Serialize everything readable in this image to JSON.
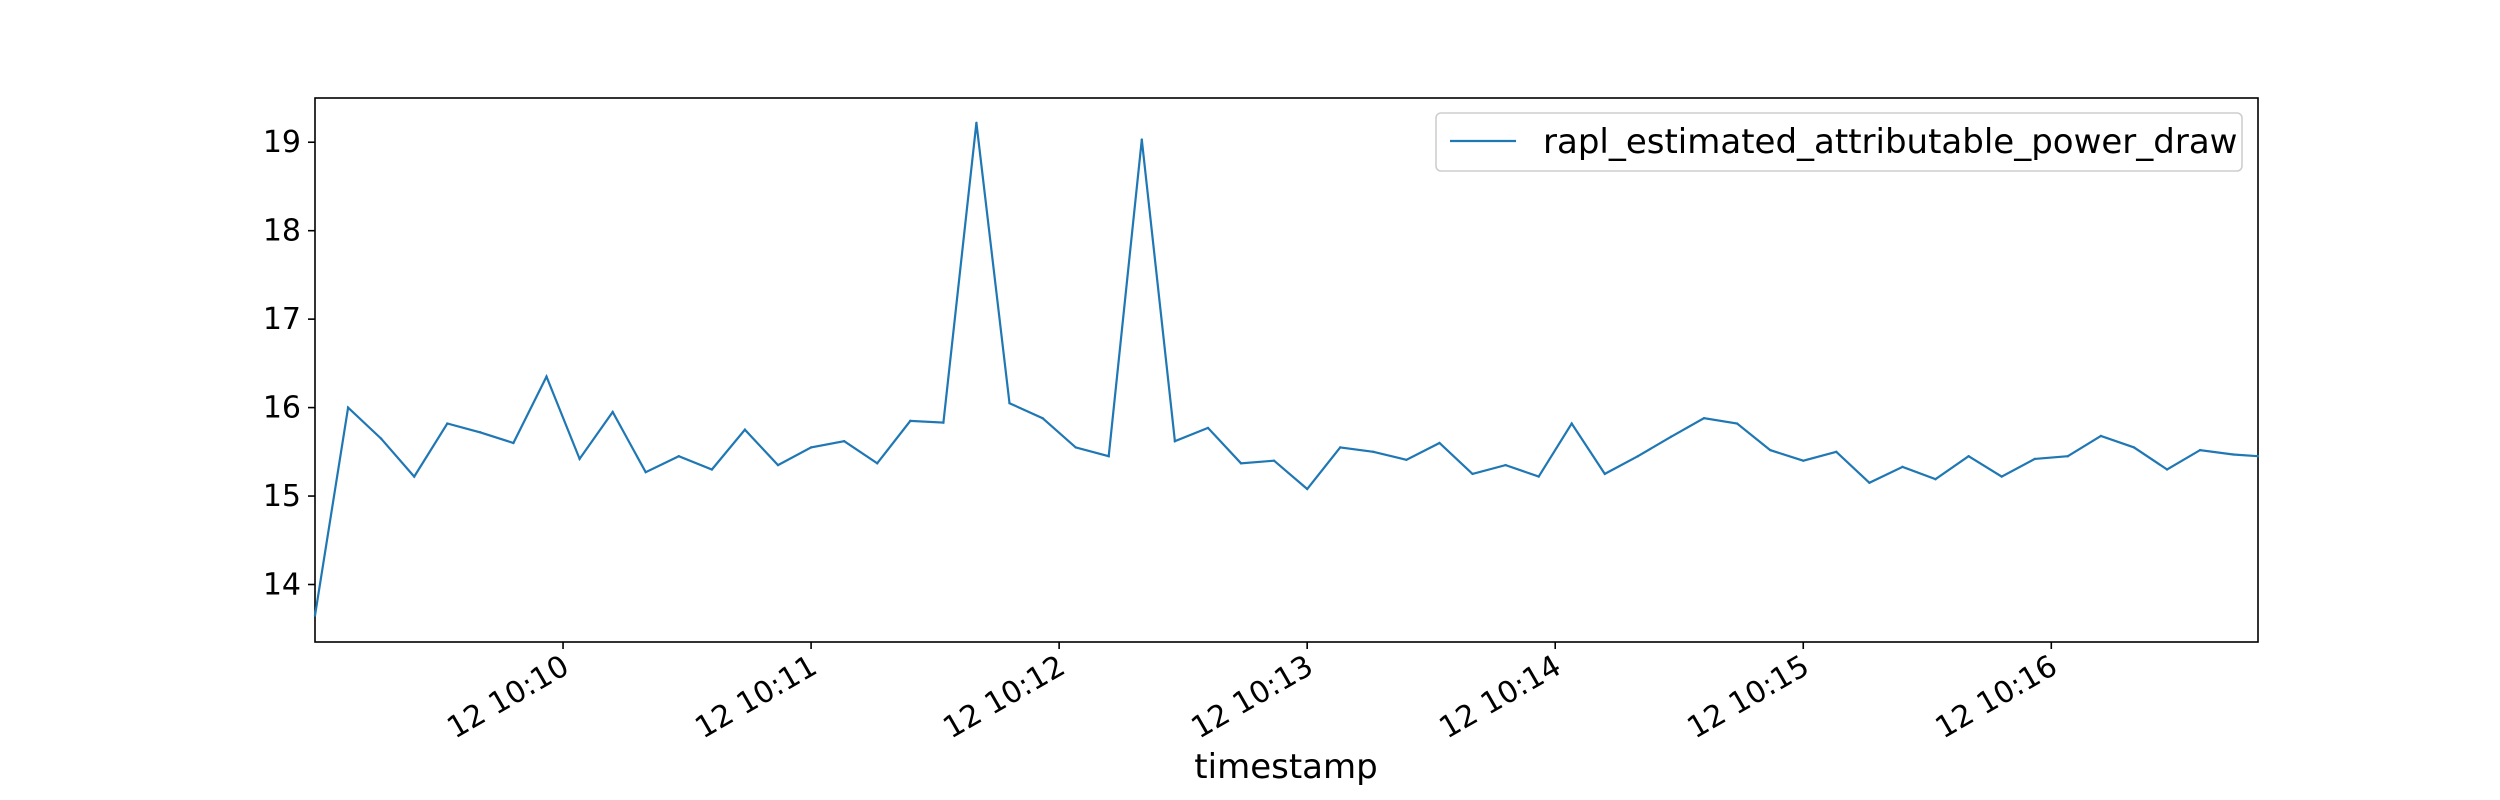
{
  "chart_data": {
    "type": "line",
    "title": "",
    "xlabel": "timestamp",
    "ylabel": "",
    "xlim": [
      0,
      470
    ],
    "ylim": [
      13.35,
      19.5
    ],
    "x_ticks": [
      {
        "value": 60,
        "label": "12 10:10"
      },
      {
        "value": 120,
        "label": "12 10:11"
      },
      {
        "value": 180,
        "label": "12 10:12"
      },
      {
        "value": 240,
        "label": "12 10:13"
      },
      {
        "value": 300,
        "label": "12 10:14"
      },
      {
        "value": 360,
        "label": "12 10:15"
      },
      {
        "value": 420,
        "label": "12 10:16"
      }
    ],
    "y_ticks": [
      {
        "value": 14,
        "label": "14"
      },
      {
        "value": 15,
        "label": "15"
      },
      {
        "value": 16,
        "label": "16"
      },
      {
        "value": 17,
        "label": "17"
      },
      {
        "value": 18,
        "label": "18"
      },
      {
        "value": 19,
        "label": "19"
      }
    ],
    "grid": false,
    "legend": {
      "position": "top-right",
      "entries": [
        "rapl_estimated_attributable_power_draw"
      ]
    },
    "series": [
      {
        "name": "rapl_estimated_attributable_power_draw",
        "color": "#1f77b4",
        "x": [
          0,
          8,
          16,
          24,
          32,
          40,
          48,
          56,
          64,
          72,
          80,
          88,
          96,
          104,
          112,
          120,
          128,
          136,
          144,
          152,
          160,
          168,
          176,
          184,
          192,
          200,
          208,
          216,
          224,
          232,
          240,
          248,
          256,
          264,
          272,
          280,
          288,
          296,
          304,
          312,
          320,
          328,
          336,
          344,
          352,
          360,
          368,
          376,
          384,
          392,
          400,
          408,
          416,
          424,
          432,
          440,
          448,
          456,
          464,
          470
        ],
        "y": [
          13.65,
          16.0,
          15.65,
          15.22,
          15.82,
          15.72,
          15.6,
          16.35,
          15.42,
          15.95,
          15.27,
          15.45,
          15.3,
          15.75,
          15.35,
          15.55,
          15.62,
          15.37,
          15.85,
          15.83,
          19.22,
          16.05,
          15.88,
          15.55,
          15.45,
          19.03,
          15.62,
          15.77,
          15.37,
          15.4,
          15.08,
          15.55,
          15.5,
          15.41,
          15.6,
          15.25,
          15.35,
          15.22,
          15.82,
          15.25,
          15.45,
          15.67,
          15.88,
          15.82,
          15.52,
          15.4,
          15.5,
          15.15,
          15.33,
          15.19,
          15.45,
          15.22,
          15.42,
          15.45,
          15.68,
          15.55,
          15.3,
          15.52,
          15.47,
          15.45
        ]
      }
    ]
  }
}
